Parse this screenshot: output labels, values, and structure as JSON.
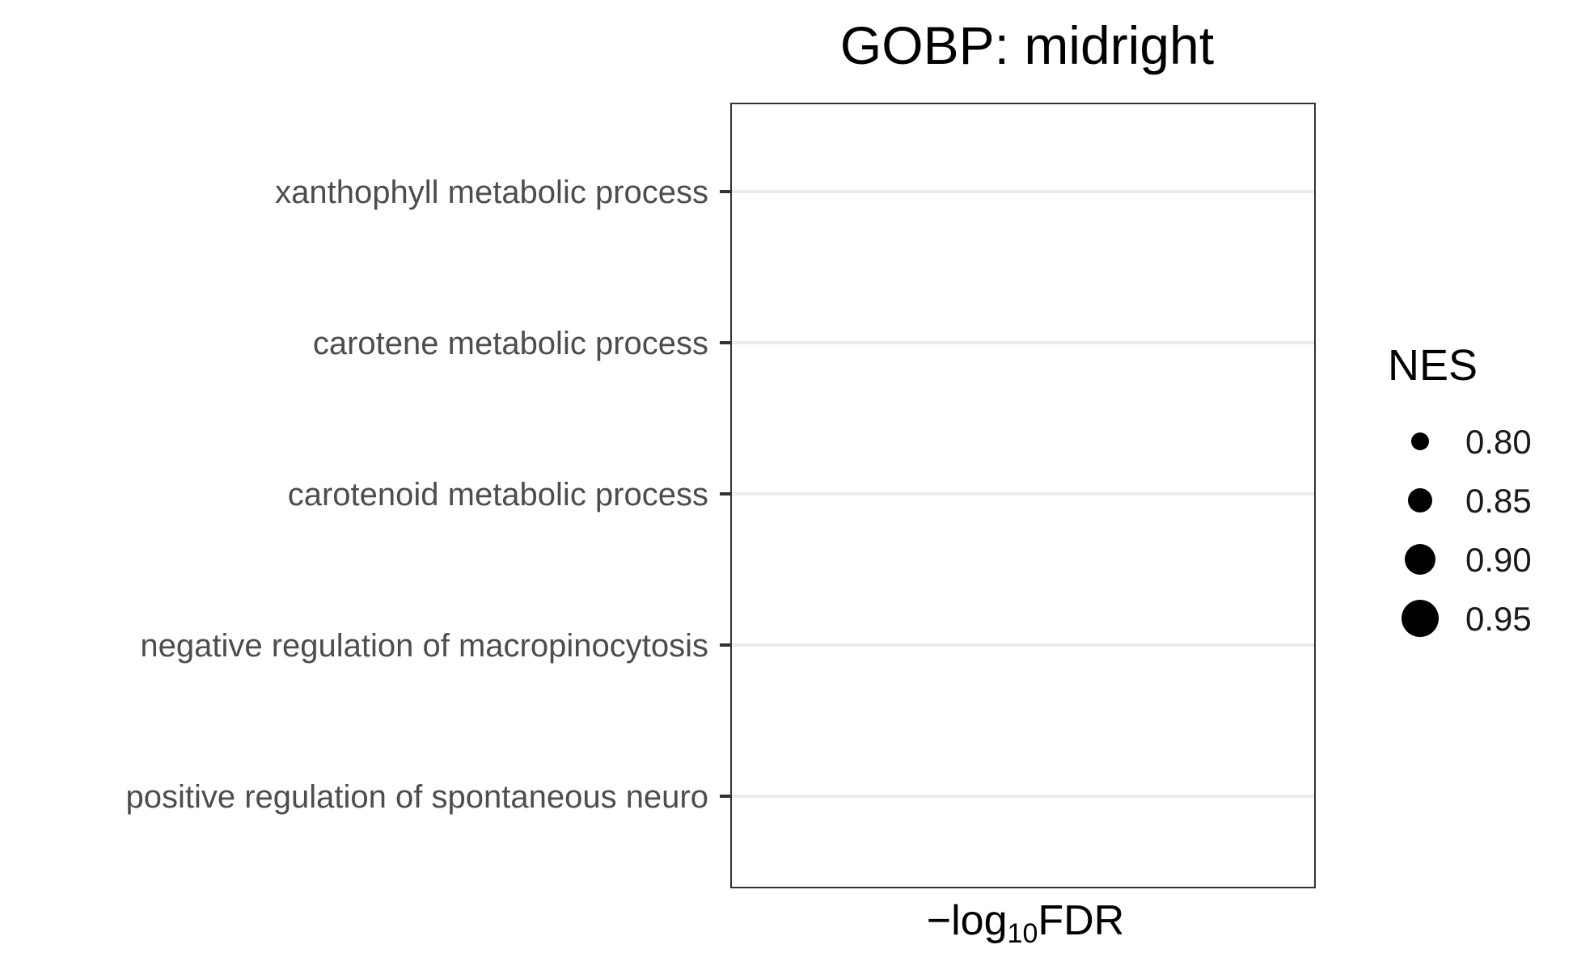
{
  "chart_data": {
    "type": "scatter",
    "title": "GOBP: midright",
    "xlabel": {
      "prefix": "−log",
      "subscript": "10",
      "suffix": "FDR"
    },
    "ylabel": "",
    "categories": [
      "xanthophyll metabolic process",
      "carotene metabolic process",
      "carotenoid metabolic process",
      "negative regulation of macropinocytosis",
      "positive regulation of spontaneous neuro"
    ],
    "points": [],
    "grid": {
      "major_y": true,
      "major_x": false
    },
    "legend": {
      "title": "NES",
      "position": "right",
      "entries": [
        {
          "label": "0.80",
          "value": 0.8
        },
        {
          "label": "0.85",
          "value": 0.85
        },
        {
          "label": "0.90",
          "value": 0.9
        },
        {
          "label": "0.95",
          "value": 0.95
        }
      ]
    },
    "colors": {
      "grid": "#ebebeb",
      "panel_border": "#333333",
      "tick": "#333333",
      "tick_label": "#4d4d4d",
      "point": "#000000"
    }
  }
}
